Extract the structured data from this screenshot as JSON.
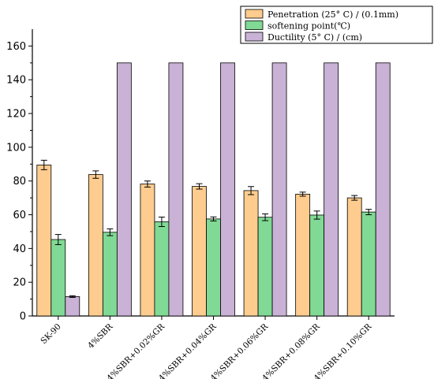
{
  "chart_data": {
    "type": "bar",
    "categories": [
      "SK-90",
      "4%SBR",
      "4%SBR+0.02%GR",
      "4%SBR+0.04%GR",
      "4%SBR+0.06%GR",
      "4%SBR+0.08%GR",
      "4%SBR+0.10%GR"
    ],
    "ylim": [
      0,
      170
    ],
    "yticks": [
      0,
      20,
      40,
      60,
      80,
      100,
      120,
      140,
      160
    ],
    "grid": false,
    "legend_position": "top-right",
    "series": [
      {
        "name": "Penetration (25° C) / (0.1mm)",
        "color": "#FDCC8E",
        "values": [
          89.5,
          83.8,
          78.2,
          76.8,
          74.3,
          72.2,
          70.0
        ],
        "errors": [
          2.8,
          2.2,
          1.8,
          1.6,
          2.4,
          1.2,
          1.4
        ]
      },
      {
        "name": "softening point(℃)",
        "color": "#80D994",
        "values": [
          45.3,
          49.6,
          55.8,
          57.5,
          58.5,
          59.8,
          61.6
        ],
        "errors": [
          3.0,
          2.0,
          2.8,
          1.2,
          2.0,
          2.4,
          1.6
        ]
      },
      {
        "name": "Ductility (5° C) / (cm)",
        "color": "#C9B2D6",
        "values": [
          11.5,
          150,
          150,
          150,
          150,
          150,
          150
        ],
        "errors": [
          0.5,
          0,
          0,
          0,
          0,
          0,
          0
        ]
      }
    ]
  }
}
